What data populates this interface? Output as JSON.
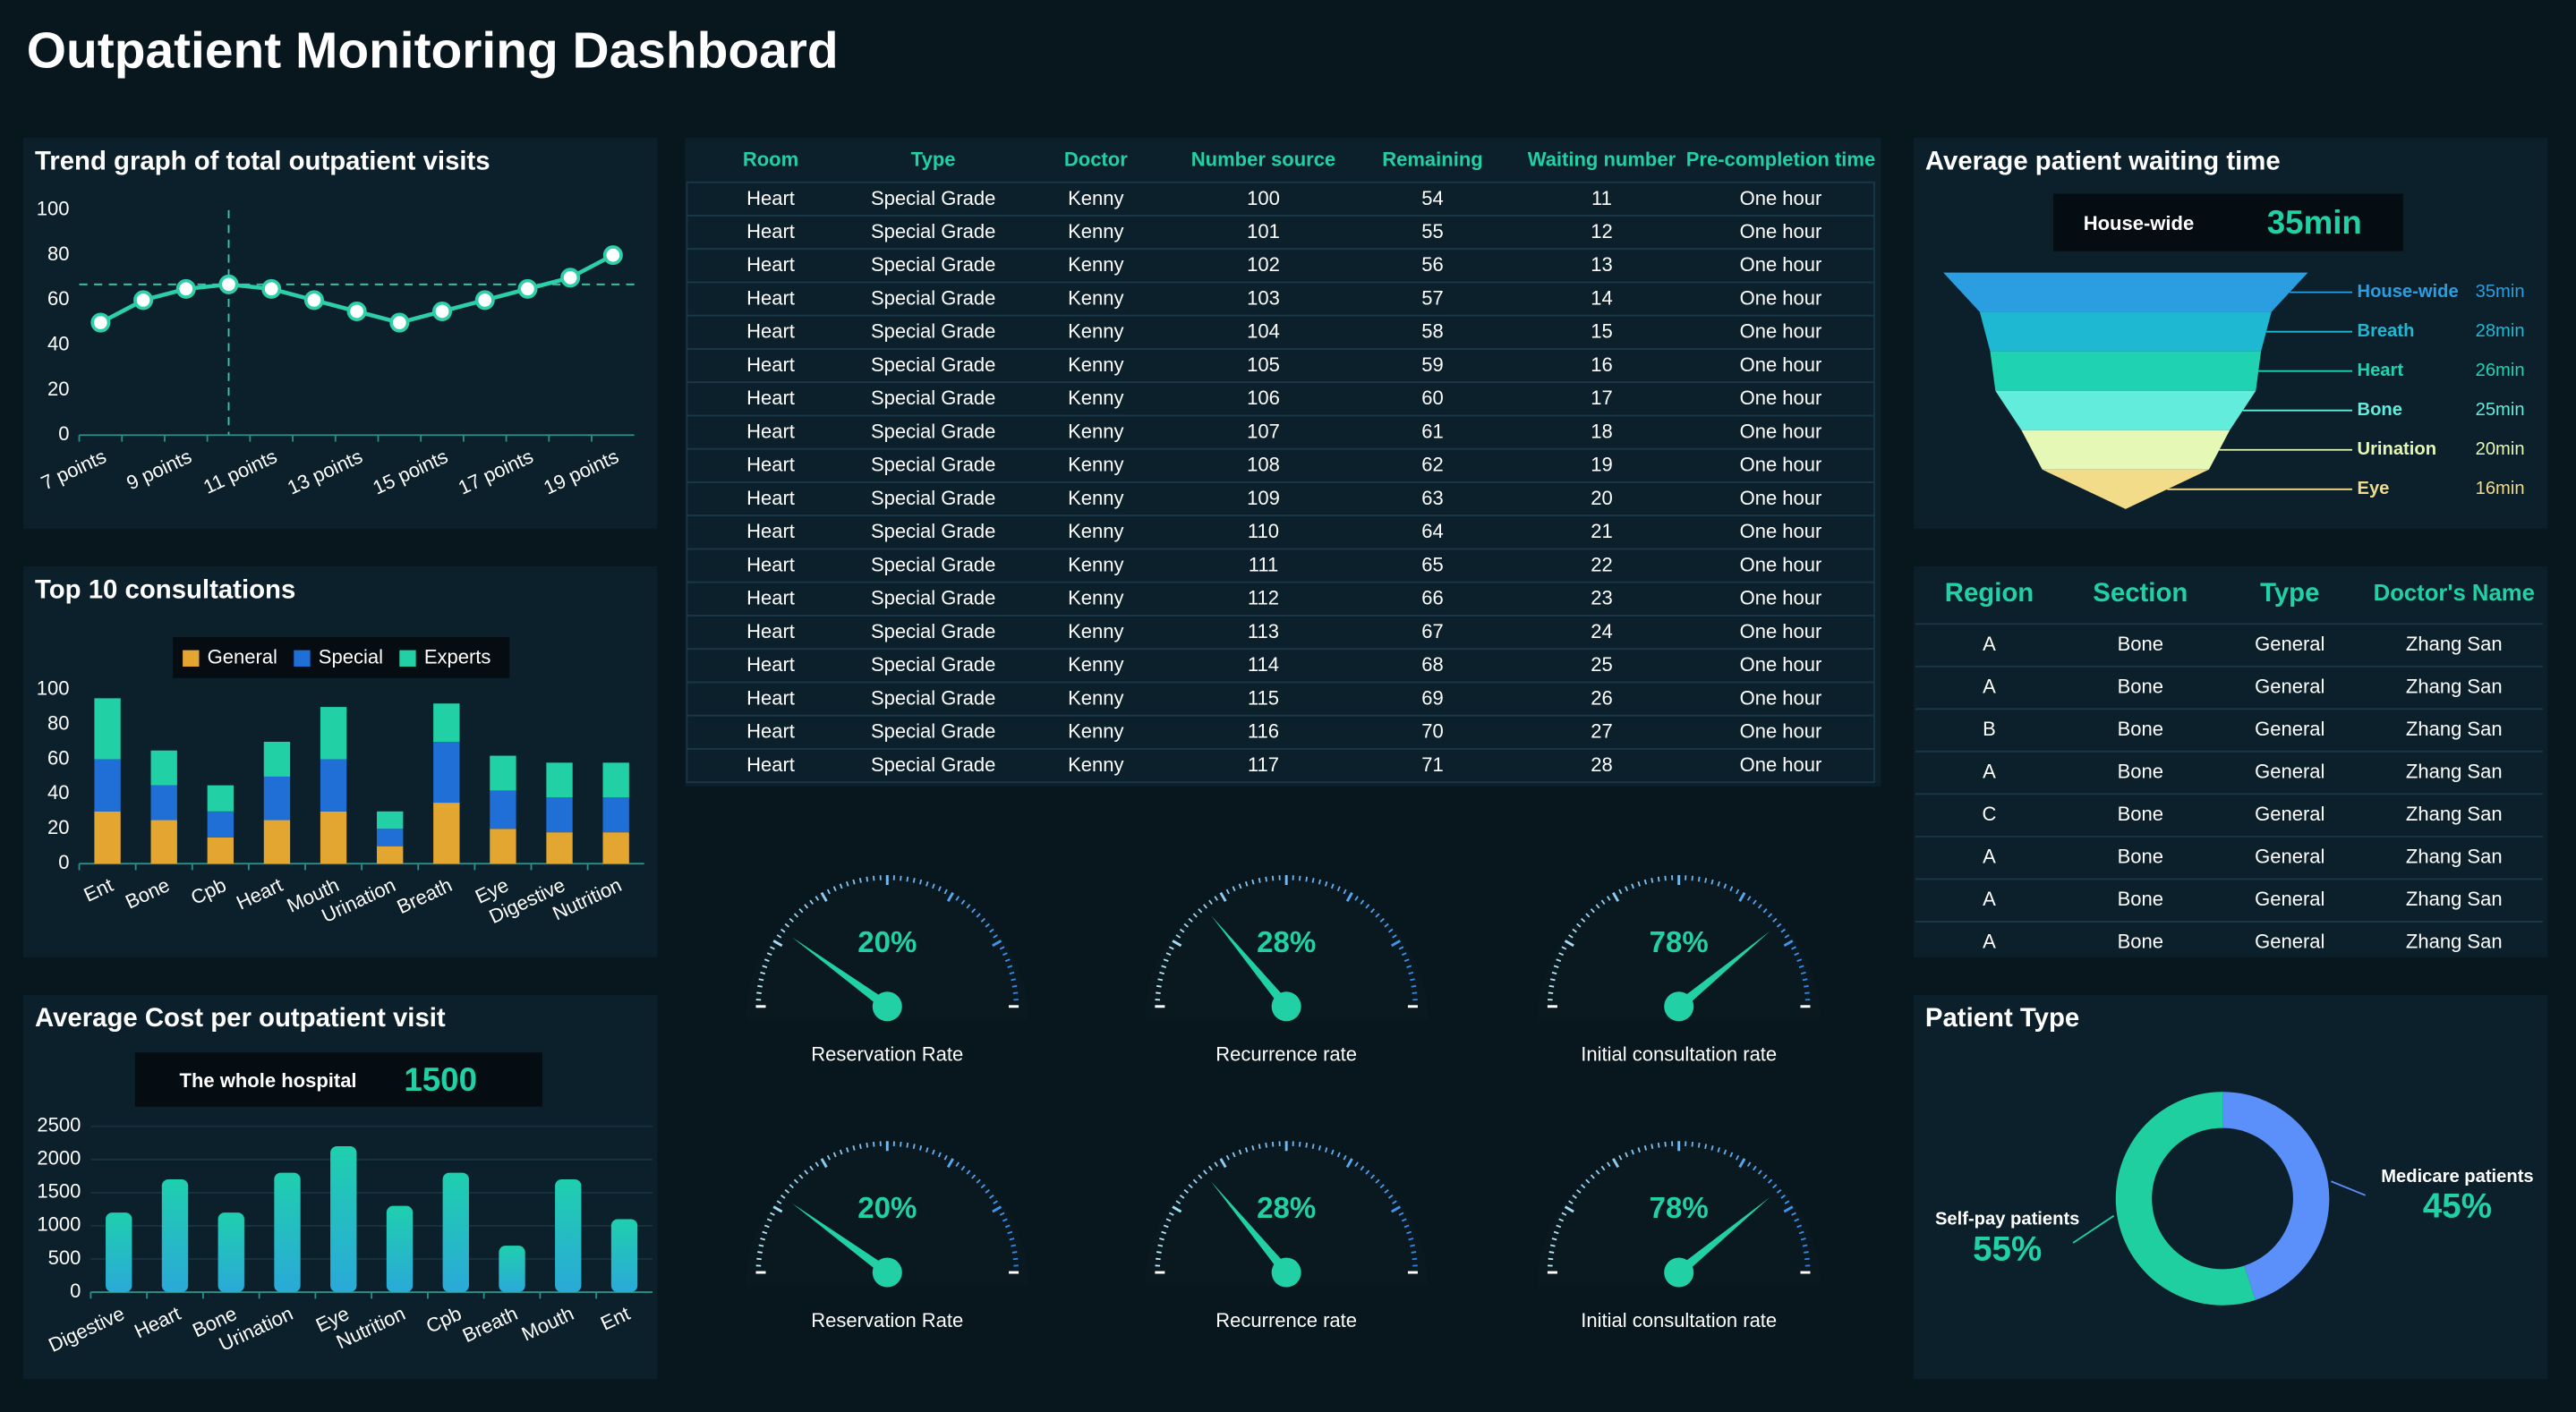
{
  "title": "Outpatient Monitoring Dashboard",
  "chart_data": [
    {
      "type": "line",
      "title": "Trend graph of total outpatient visits",
      "categories": [
        "7 points",
        null,
        "9 points",
        null,
        "11 points",
        null,
        "13 points",
        null,
        "15 points",
        null,
        "17 points",
        null,
        "19 points"
      ],
      "values": [
        50,
        60,
        65,
        67,
        65,
        60,
        55,
        50,
        55,
        60,
        65,
        70,
        80
      ],
      "color": "#2ccfa8",
      "ylim": [
        0,
        100
      ],
      "yticks": [
        0,
        20,
        40,
        60,
        80,
        100
      ],
      "grid": false,
      "average_line": 67
    },
    {
      "type": "bar",
      "title": "Top 10 consultations",
      "categories": [
        "Ent",
        "Bone",
        "Cpb",
        "Heart",
        "Mouth",
        "Urination",
        "Breath",
        "Eye",
        "Digestive",
        "Nutrition"
      ],
      "series": [
        {
          "name": "General",
          "color": "#e3a630",
          "values": [
            30,
            25,
            15,
            25,
            30,
            10,
            35,
            20,
            18,
            18
          ]
        },
        {
          "name": "Special",
          "color": "#1f6fd6",
          "values": [
            30,
            20,
            15,
            25,
            30,
            10,
            35,
            22,
            20,
            20
          ]
        },
        {
          "name": "Experts",
          "color": "#22d0a6",
          "values": [
            35,
            20,
            15,
            20,
            30,
            10,
            22,
            20,
            20,
            20
          ]
        }
      ],
      "ylim": [
        0,
        100
      ],
      "yticks": [
        0,
        20,
        40,
        60,
        80,
        100
      ],
      "grid": false,
      "stacked": true,
      "legend": "top"
    },
    {
      "type": "bar",
      "title": "Average Cost per outpatient visit",
      "kpi_label": "The whole hospital",
      "kpi_value": 1500,
      "categories": [
        "Digestive",
        "Heart",
        "Bone",
        "Urination",
        "Eye",
        "Nutrition",
        "Cpb",
        "Breath",
        "Mouth",
        "Ent"
      ],
      "values": [
        1200,
        1700,
        1200,
        1800,
        2200,
        1300,
        1800,
        700,
        1700,
        1100
      ],
      "color": "#22c3bd",
      "ylim": [
        0,
        2500
      ],
      "yticks": [
        0,
        500,
        1000,
        1500,
        2000,
        2500
      ],
      "grid": true
    },
    {
      "type": "funnel",
      "title": "Average patient waiting time",
      "kpi_label": "House-wide",
      "kpi_value": "35min",
      "categories": [
        "House-wide",
        "Breath",
        "Heart",
        "Bone",
        "Urination",
        "Eye"
      ],
      "values": [
        35,
        28,
        26,
        25,
        20,
        16
      ],
      "value_labels": [
        "35min",
        "28min",
        "26min",
        "25min",
        "20min",
        "16min"
      ],
      "colors": [
        "#2a9ee0",
        "#1fb8d2",
        "#1fd3b2",
        "#62ecdc",
        "#e6f8b6",
        "#f2dc8a"
      ]
    },
    {
      "type": "gauge",
      "range": [
        0,
        100
      ],
      "categories": [
        "Reservation Rate",
        "Recurrence rate",
        "Initial consultation rate",
        "Reservation Rate",
        "Recurrence rate",
        "Initial consultation rate"
      ],
      "values": [
        20,
        28,
        78,
        20,
        28,
        78
      ],
      "value_labels": [
        "20%",
        "28%",
        "78%",
        "20%",
        "28%",
        "78%"
      ],
      "color": "#22d0a6"
    },
    {
      "type": "pie",
      "title": "Patient Type",
      "donut": true,
      "categories": [
        "Medicare patients",
        "Self-pay patients"
      ],
      "values": [
        45,
        55
      ],
      "value_labels": [
        "45%",
        "55%"
      ],
      "colors": [
        "#5b8ff9",
        "#1fcf9f"
      ]
    }
  ],
  "schedule_table": {
    "columns": [
      "Room",
      "Type",
      "Doctor",
      "Number source",
      "Remaining",
      "Waiting number",
      "Pre-completion time"
    ],
    "rows": [
      [
        "Heart",
        "Special Grade",
        "Kenny",
        100,
        54,
        11,
        "One hour"
      ],
      [
        "Heart",
        "Special Grade",
        "Kenny",
        101,
        55,
        12,
        "One hour"
      ],
      [
        "Heart",
        "Special Grade",
        "Kenny",
        102,
        56,
        13,
        "One hour"
      ],
      [
        "Heart",
        "Special Grade",
        "Kenny",
        103,
        57,
        14,
        "One hour"
      ],
      [
        "Heart",
        "Special Grade",
        "Kenny",
        104,
        58,
        15,
        "One hour"
      ],
      [
        "Heart",
        "Special Grade",
        "Kenny",
        105,
        59,
        16,
        "One hour"
      ],
      [
        "Heart",
        "Special Grade",
        "Kenny",
        106,
        60,
        17,
        "One hour"
      ],
      [
        "Heart",
        "Special Grade",
        "Kenny",
        107,
        61,
        18,
        "One hour"
      ],
      [
        "Heart",
        "Special Grade",
        "Kenny",
        108,
        62,
        19,
        "One hour"
      ],
      [
        "Heart",
        "Special Grade",
        "Kenny",
        109,
        63,
        20,
        "One hour"
      ],
      [
        "Heart",
        "Special Grade",
        "Kenny",
        110,
        64,
        21,
        "One hour"
      ],
      [
        "Heart",
        "Special Grade",
        "Kenny",
        111,
        65,
        22,
        "One hour"
      ],
      [
        "Heart",
        "Special Grade",
        "Kenny",
        112,
        66,
        23,
        "One hour"
      ],
      [
        "Heart",
        "Special Grade",
        "Kenny",
        113,
        67,
        24,
        "One hour"
      ],
      [
        "Heart",
        "Special Grade",
        "Kenny",
        114,
        68,
        25,
        "One hour"
      ],
      [
        "Heart",
        "Special Grade",
        "Kenny",
        115,
        69,
        26,
        "One hour"
      ],
      [
        "Heart",
        "Special Grade",
        "Kenny",
        116,
        70,
        27,
        "One hour"
      ],
      [
        "Heart",
        "Special Grade",
        "Kenny",
        117,
        71,
        28,
        "One hour"
      ]
    ]
  },
  "doctor_table": {
    "columns": [
      "Region",
      "Section",
      "Type",
      "Doctor's Name"
    ],
    "rows": [
      [
        "A",
        "Bone",
        "General",
        "Zhang San"
      ],
      [
        "A",
        "Bone",
        "General",
        "Zhang San"
      ],
      [
        "B",
        "Bone",
        "General",
        "Zhang San"
      ],
      [
        "A",
        "Bone",
        "General",
        "Zhang San"
      ],
      [
        "C",
        "Bone",
        "General",
        "Zhang San"
      ],
      [
        "A",
        "Bone",
        "General",
        "Zhang San"
      ],
      [
        "A",
        "Bone",
        "General",
        "Zhang San"
      ],
      [
        "A",
        "Bone",
        "General",
        "Zhang San"
      ]
    ]
  }
}
